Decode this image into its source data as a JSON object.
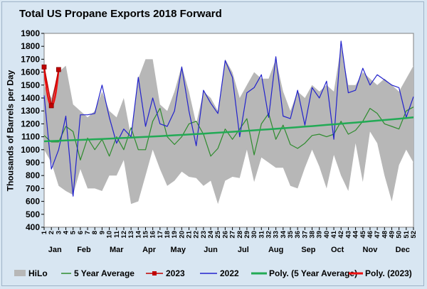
{
  "colors": {
    "background": "#d8e6f2",
    "plot_background": "#ffffff",
    "hilo": "#b7b7b7",
    "five_year": "#2e8b2e",
    "year_2023": "#c00000",
    "year_2022": "#2222cc",
    "poly_five_year": "#22aa55",
    "poly_2023": "#ee1111"
  },
  "chart_data": {
    "type": "line",
    "title": "Total US Propane Exports 2018 Forward",
    "xlabel": "",
    "ylabel": "Thousands of Barrels per Day",
    "ylim": [
      400,
      1900
    ],
    "yticks": [
      400,
      500,
      600,
      700,
      800,
      900,
      1000,
      1100,
      1200,
      1300,
      1400,
      1500,
      1600,
      1700,
      1800,
      1900
    ],
    "grid": false,
    "legend_position": "bottom",
    "week_labels": [
      "1",
      "2",
      "3",
      "4",
      "5",
      "6",
      "7",
      "8",
      "9",
      "10",
      "11",
      "12",
      "13",
      "14",
      "15",
      "16",
      "17",
      "18",
      "19",
      "20",
      "21",
      "22",
      "23",
      "24",
      "25",
      "26",
      "27",
      "28",
      "29",
      "30",
      "31",
      "32",
      "33",
      "34",
      "35",
      "36",
      "37",
      "38",
      "39",
      "40",
      "41",
      "42",
      "43",
      "44",
      "45",
      "46",
      "47",
      "48",
      "49",
      "50",
      "51",
      "52"
    ],
    "month_labels": [
      {
        "label": "Jan",
        "week": 2.5
      },
      {
        "label": "Feb",
        "week": 6.5
      },
      {
        "label": "Mar",
        "week": 11
      },
      {
        "label": "Apr",
        "week": 15.5
      },
      {
        "label": "May",
        "week": 19.5
      },
      {
        "label": "Jun",
        "week": 24
      },
      {
        "label": "Jul",
        "week": 28.5
      },
      {
        "label": "Aug",
        "week": 33
      },
      {
        "label": "Sep",
        "week": 37.5
      },
      {
        "label": "Oct",
        "week": 41.5
      },
      {
        "label": "Nov",
        "week": 46
      },
      {
        "label": "Dec",
        "week": 50.5
      }
    ],
    "hilo": {
      "name": "HiLo",
      "high": [
        1500,
        1400,
        1600,
        1650,
        1350,
        1300,
        1250,
        1300,
        1450,
        1300,
        1250,
        1400,
        1100,
        1550,
        1700,
        1700,
        1350,
        1300,
        1450,
        1650,
        1450,
        1200,
        1450,
        1400,
        1300,
        1700,
        1600,
        1400,
        1500,
        1600,
        1550,
        1550,
        1700,
        1450,
        1300,
        1450,
        1400,
        1500,
        1450,
        1500,
        1450,
        1800,
        1500,
        1500,
        1600,
        1550,
        1500,
        1550,
        1500,
        1450,
        1550,
        1650
      ],
      "low": [
        1000,
        900,
        720,
        680,
        650,
        850,
        700,
        700,
        680,
        800,
        800,
        920,
        580,
        600,
        800,
        1000,
        850,
        720,
        760,
        830,
        790,
        780,
        720,
        760,
        580,
        760,
        790,
        780,
        1000,
        750,
        940,
        900,
        860,
        860,
        720,
        700,
        860,
        1000,
        870,
        700,
        960,
        800,
        680,
        1050,
        750,
        1140,
        1050,
        800,
        600,
        880,
        1000,
        900
      ]
    },
    "series": [
      {
        "name": "5 Year Average",
        "type": "line",
        "values": [
          1110,
          1060,
          1060,
          1180,
          1140,
          920,
          1090,
          1000,
          1080,
          950,
          1100,
          1000,
          1170,
          1000,
          1000,
          1220,
          1320,
          1100,
          1040,
          1100,
          1200,
          1220,
          1120,
          950,
          1010,
          1160,
          1080,
          1160,
          1240,
          960,
          1200,
          1280,
          1080,
          1190,
          1040,
          1010,
          1050,
          1110,
          1120,
          1100,
          1120,
          1220,
          1120,
          1150,
          1220,
          1320,
          1280,
          1200,
          1180,
          1160,
          1300,
          1330
        ]
      },
      {
        "name": "2023",
        "type": "line",
        "values": [
          1640,
          1340,
          1620
        ]
      },
      {
        "name": "2022",
        "type": "line",
        "values": [
          1420,
          850,
          1000,
          1260,
          640,
          1270,
          1270,
          1280,
          1500,
          1250,
          1050,
          1160,
          1100,
          1560,
          1180,
          1400,
          1200,
          1180,
          1300,
          1640,
          1300,
          1030,
          1460,
          1360,
          1280,
          1690,
          1560,
          1100,
          1440,
          1480,
          1580,
          1250,
          1720,
          1260,
          1240,
          1460,
          1190,
          1480,
          1400,
          1530,
          1080,
          1840,
          1440,
          1460,
          1630,
          1500,
          1580,
          1540,
          1500,
          1480,
          1250,
          1410
        ]
      },
      {
        "name": "Poly. (5 Year Average)",
        "type": "trend",
        "start": 1065,
        "end": 1250
      },
      {
        "name": "Poly. (2023)",
        "type": "trend",
        "values": [
          1640,
          1340,
          1620
        ]
      }
    ]
  }
}
